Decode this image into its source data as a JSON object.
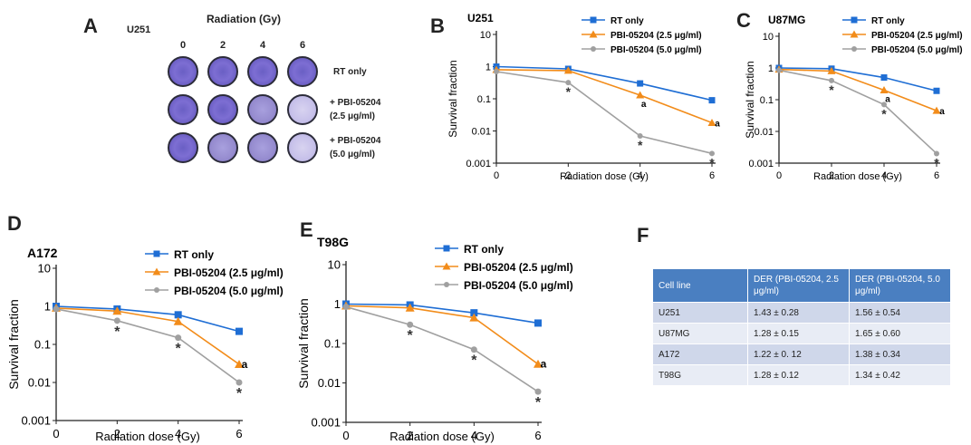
{
  "panels": {
    "A": "A",
    "B": "B",
    "C": "C",
    "D": "D",
    "E": "E",
    "F": "F"
  },
  "panelA": {
    "cell_line": "U251",
    "header": "Radiation (Gy)",
    "doses": [
      "0",
      "2",
      "4",
      "6"
    ],
    "rows": [
      {
        "line1": "RT only",
        "line2": ""
      },
      {
        "line1": "+ PBI-05204",
        "line2": "(2.5 μg/ml)"
      },
      {
        "line1": "+ PBI-05204",
        "line2": "(5.0 μg/ml)"
      }
    ]
  },
  "colors": {
    "rt": "#1f6ed4",
    "low": "#f28c1a",
    "high": "#a0a0a0"
  },
  "chart_data": [
    {
      "id": "B",
      "type": "line",
      "title": "U251",
      "xlabel": "Radiation dose (Gy)",
      "ylabel": "Survival fraction",
      "x": [
        0,
        2,
        4,
        6
      ],
      "yscale": "log",
      "ylim": [
        0.001,
        10
      ],
      "xticks": [
        "0",
        "2",
        "4",
        "6"
      ],
      "yticks": [
        "0.001",
        "0.01",
        "0.1",
        "1",
        "10"
      ],
      "series": [
        {
          "name": "RT only",
          "values": [
            1.0,
            0.85,
            0.3,
            0.09
          ]
        },
        {
          "name": "PBI-05204 (2.5 μg/ml)",
          "values": [
            0.8,
            0.75,
            0.13,
            0.018
          ]
        },
        {
          "name": "PBI-05204 (5.0 μg/ml)",
          "values": [
            0.7,
            0.32,
            0.007,
            0.002
          ]
        }
      ],
      "annotations": [
        {
          "x": 2,
          "label": "*"
        },
        {
          "x": 4,
          "label": "a"
        },
        {
          "x": 4,
          "label": "*"
        },
        {
          "x": 6,
          "label": "a"
        },
        {
          "x": 6,
          "label": "*"
        }
      ]
    },
    {
      "id": "C",
      "type": "line",
      "title": "U87MG",
      "xlabel": "Radiation dose (Gy)",
      "ylabel": "Survival fraction",
      "x": [
        0,
        2,
        4,
        6
      ],
      "yscale": "log",
      "ylim": [
        0.001,
        10
      ],
      "xticks": [
        "0",
        "2",
        "4",
        "6"
      ],
      "yticks": [
        "0.001",
        "0.01",
        "0.1",
        "1",
        "10"
      ],
      "series": [
        {
          "name": "RT only",
          "values": [
            1.0,
            0.95,
            0.5,
            0.19
          ]
        },
        {
          "name": "PBI-05204 (2.5 μg/ml)",
          "values": [
            0.9,
            0.8,
            0.2,
            0.045
          ]
        },
        {
          "name": "PBI-05204 (5.0 μg/ml)",
          "values": [
            0.85,
            0.4,
            0.07,
            0.002
          ]
        }
      ],
      "annotations": [
        {
          "x": 2,
          "label": "*"
        },
        {
          "x": 4,
          "label": "a"
        },
        {
          "x": 4,
          "label": "*"
        },
        {
          "x": 6,
          "label": "a"
        },
        {
          "x": 6,
          "label": "*"
        }
      ]
    },
    {
      "id": "D",
      "type": "line",
      "title": "A172",
      "xlabel": "Radiation dose (Gy)",
      "ylabel": "Survival fraction",
      "x": [
        0,
        2,
        4,
        6
      ],
      "yscale": "log",
      "ylim": [
        0.001,
        10
      ],
      "xticks": [
        "0",
        "2",
        "4",
        "6"
      ],
      "yticks": [
        "0.001",
        "0.01",
        "0.1",
        "1",
        "10"
      ],
      "series": [
        {
          "name": "RT only",
          "values": [
            1.0,
            0.85,
            0.6,
            0.22
          ]
        },
        {
          "name": "PBI-05204 (2.5 μg/ml)",
          "values": [
            0.9,
            0.75,
            0.4,
            0.03
          ]
        },
        {
          "name": "PBI-05204 (5.0 μg/ml)",
          "values": [
            0.85,
            0.42,
            0.15,
            0.01
          ]
        }
      ],
      "annotations": [
        {
          "x": 2,
          "label": "*"
        },
        {
          "x": 4,
          "label": "*"
        },
        {
          "x": 6,
          "label": "a"
        },
        {
          "x": 6,
          "label": "*"
        }
      ]
    },
    {
      "id": "E",
      "type": "line",
      "title": "T98G",
      "xlabel": "Radiation dose (Gy)",
      "ylabel": "Survival fraction",
      "x": [
        0,
        2,
        4,
        6
      ],
      "yscale": "log",
      "ylim": [
        0.001,
        10
      ],
      "xticks": [
        "0",
        "2",
        "4",
        "6"
      ],
      "yticks": [
        "0.001",
        "0.01",
        "0.1",
        "1",
        "10"
      ],
      "series": [
        {
          "name": "RT only",
          "values": [
            1.0,
            0.95,
            0.6,
            0.33
          ]
        },
        {
          "name": "PBI-05204 (2.5 μg/ml)",
          "values": [
            0.9,
            0.8,
            0.45,
            0.03
          ]
        },
        {
          "name": "PBI-05204 (5.0 μg/ml)",
          "values": [
            0.85,
            0.3,
            0.07,
            0.006
          ]
        }
      ],
      "annotations": [
        {
          "x": 2,
          "label": "*"
        },
        {
          "x": 4,
          "label": "*"
        },
        {
          "x": 6,
          "label": "a"
        },
        {
          "x": 6,
          "label": "*"
        }
      ]
    },
    {
      "id": "F",
      "type": "table",
      "columns": [
        "Cell line",
        "DER (PBI-05204, 2.5 μg/ml)",
        "DER (PBI-05204, 5.0 μg/ml)"
      ],
      "rows": [
        [
          "U251",
          "1.43 ± 0.28",
          "1.56 ± 0.54"
        ],
        [
          "U87MG",
          "1.28 ± 0.15",
          "1.65 ± 0.60"
        ],
        [
          "A172",
          "1.22 ± 0. 12",
          "1.38 ± 0.34"
        ],
        [
          "T98G",
          "1.28 ± 0.12",
          "1.34 ± 0.42"
        ]
      ]
    }
  ]
}
